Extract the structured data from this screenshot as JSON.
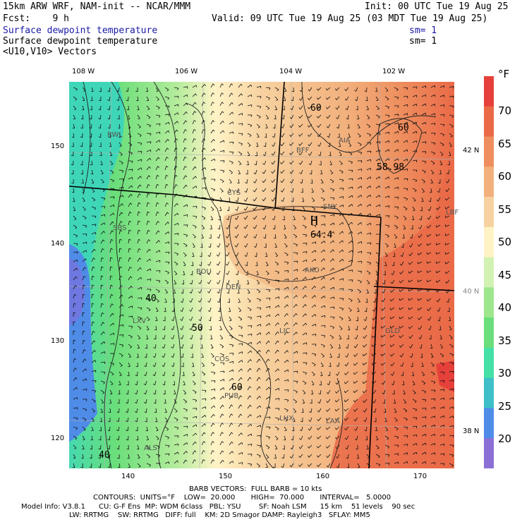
{
  "header": {
    "model_title": "15km ARW WRF, NAM-init -- NCAR/MMM",
    "init": "Init: 00 UTC Tue 19 Aug 25",
    "fcst": "Fcst:    9 h",
    "valid": "Valid: 09 UTC Tue 19 Aug 25 (03 MDT Tue 19 Aug 25)",
    "field1": "Surface dewpoint temperature",
    "sm1": "sm= 1",
    "field2": "Surface dewpoint temperature",
    "sm2": "sm= 1",
    "field3": "<U10,V10> Vectors"
  },
  "colors": {
    "blue_text": "#1a1aa6",
    "scale": [
      "#8c6fd6",
      "#4f8ce8",
      "#3fbfc8",
      "#45e0a6",
      "#6ade7a",
      "#9ee68c",
      "#d2f2b4",
      "#fff3c6",
      "#f7d2a0",
      "#f2b07c",
      "#ee8e5e",
      "#ea6a48",
      "#e6403a"
    ]
  },
  "axes": {
    "top_lon": [
      "108 W",
      "106 W",
      "104 W",
      "102 W"
    ],
    "right_lat": [
      "42 N",
      "40 N",
      "38 N"
    ],
    "bottom_ticks": [
      "140",
      "150",
      "160",
      "170"
    ],
    "left_ticks": [
      "150",
      "140",
      "130",
      "120"
    ]
  },
  "colorbar": {
    "unit": "°F",
    "labels": [
      "70",
      "65",
      "60",
      "55",
      "50",
      "45",
      "40",
      "35",
      "30",
      "25",
      "20"
    ]
  },
  "map": {
    "high_marker": "H",
    "high_value": "64.4",
    "contour_labels": [
      "60",
      "60",
      "58.98",
      "60",
      "50",
      "40",
      "40",
      "40",
      "60"
    ],
    "stations": [
      "RWL",
      "BFF",
      "AIA",
      "CYS",
      "SNY",
      "LBF",
      "SBS",
      "BOU",
      "DEN",
      "AKO",
      "LXV",
      "LIC",
      "GLD",
      "COS",
      "PUB",
      "LHX",
      "LAA",
      "ALS"
    ]
  },
  "footer": {
    "barb": "BARB VECTORS:  FULL BARB = 10 kts",
    "contours": "CONTOURS:  UNITS=°F    LOW=  20.000       HIGH=  70.000       INTERVAL=   5.0000",
    "model_info_1": "Model Info: V3.8.1      CU: G-F Ens  MP: WDM 6class   PBL: YSU        SF: Noah LSM      15 km    51 levels    90 sec",
    "model_info_2": "LW: RRTMG    SW: RRTMG   DIFF: full    KM: 2D Smagor DAMP: Rayleigh3   SFLAY: MM5"
  }
}
